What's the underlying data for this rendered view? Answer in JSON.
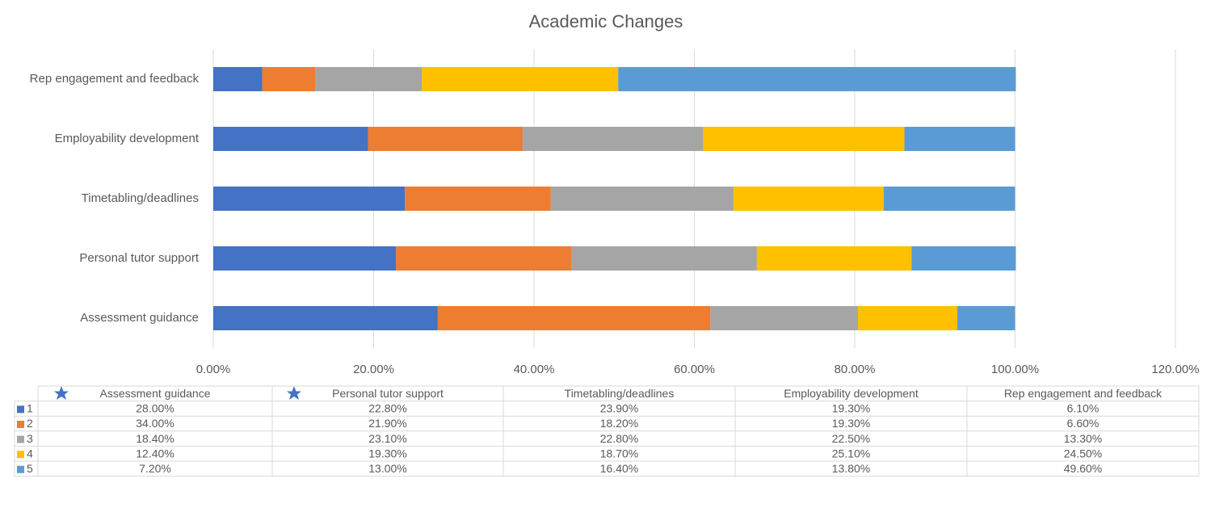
{
  "chart_data": {
    "type": "stacked-bar-horizontal",
    "title": "Academic Changes",
    "categories": [
      "Assessment guidance",
      "Personal tutor support",
      "Timetabling/deadlines",
      "Employability development",
      "Rep engagement and feedback"
    ],
    "series": [
      {
        "name": "1",
        "color": "#4472c4",
        "values": [
          28,
          22.8,
          23.9,
          19.3,
          6.1
        ],
        "value_labels": [
          "28.00%",
          "22.80%",
          "23.90%",
          "19.30%",
          "6.10%"
        ]
      },
      {
        "name": "2",
        "color": "#ed7d31",
        "values": [
          34,
          21.9,
          18.2,
          19.3,
          6.6
        ],
        "value_labels": [
          "34.00%",
          "21.90%",
          "18.20%",
          "19.30%",
          "6.60%"
        ]
      },
      {
        "name": "3",
        "color": "#a5a5a5",
        "values": [
          18.4,
          23.1,
          22.8,
          22.5,
          13.3
        ],
        "value_labels": [
          "18.40%",
          "23.10%",
          "22.80%",
          "22.50%",
          "13.30%"
        ]
      },
      {
        "name": "4",
        "color": "#ffc000",
        "values": [
          12.4,
          19.3,
          18.7,
          25.1,
          24.5
        ],
        "value_labels": [
          "12.40%",
          "19.30%",
          "18.70%",
          "25.10%",
          "24.50%"
        ]
      },
      {
        "name": "5",
        "color": "#5b9bd5",
        "values": [
          7.2,
          13,
          16.4,
          13.8,
          49.6
        ],
        "value_labels": [
          "7.20%",
          "13.00%",
          "16.40%",
          "13.80%",
          "49.60%"
        ]
      }
    ],
    "xlim": [
      0,
      120
    ],
    "xticks": [
      {
        "value": 0,
        "label": "0.00%"
      },
      {
        "value": 20,
        "label": "20.00%"
      },
      {
        "value": 40,
        "label": "40.00%"
      },
      {
        "value": 60,
        "label": "60.00%"
      },
      {
        "value": 80,
        "label": "80.00%"
      },
      {
        "value": 100,
        "label": "100.00%"
      },
      {
        "value": 120,
        "label": "120.00%"
      }
    ],
    "grid": true
  }
}
